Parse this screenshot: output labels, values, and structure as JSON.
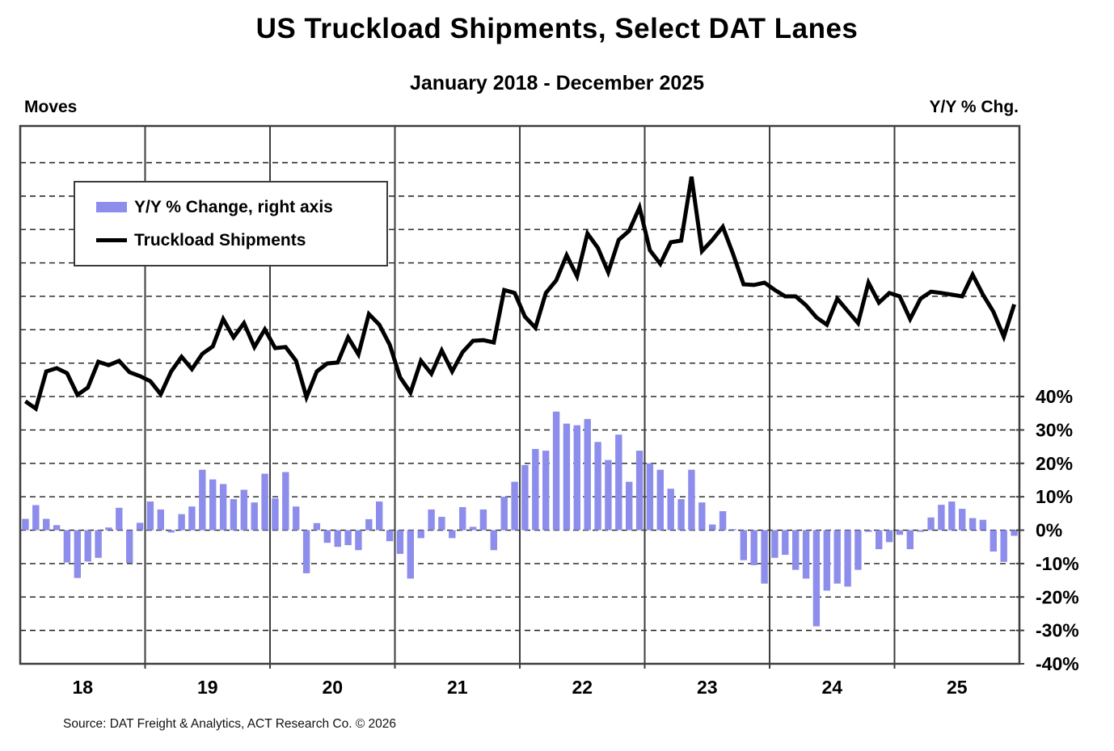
{
  "header": {
    "title": "US Truckload Shipments, Select DAT Lanes",
    "subtitle": "January 2018 - December 2025"
  },
  "axes": {
    "left_title": "Moves",
    "right_title": "Y/Y % Chg."
  },
  "legend": {
    "items": [
      {
        "label": "Y/Y % Change, right axis",
        "swatch": "bar",
        "color": "#8d8dec"
      },
      {
        "label": "Truckload Shipments",
        "swatch": "line",
        "color": "#000000"
      }
    ]
  },
  "footer": {
    "source": "Source: DAT Freight & Analytics, ACT Research Co. © 2026"
  },
  "chart_data": {
    "type": "combo",
    "subtypes": [
      "bar",
      "line"
    ],
    "title": "US Truckload Shipments, Select DAT Lanes",
    "subtitle": "January 2018 - December 2025",
    "x_unit": "month",
    "years": [
      "2018",
      "2019",
      "2020",
      "2021",
      "2022",
      "2023",
      "2024",
      "2025"
    ],
    "x_axis": {
      "tick_labels": [
        "18",
        "19",
        "20",
        "21",
        "22",
        "23",
        "24",
        "25"
      ],
      "grid": "solid vertical lines at year boundaries"
    },
    "left_axis": {
      "label": "Moves",
      "numeric_ticks_shown": false
    },
    "right_axis": {
      "label": "Y/Y % Chg.",
      "ticks": [
        {
          "label": "40%",
          "value": 40
        },
        {
          "label": "30%",
          "value": 30
        },
        {
          "label": "20%",
          "value": 20
        },
        {
          "label": "10%",
          "value": 10
        },
        {
          "label": "0%",
          "value": 0
        },
        {
          "label": "-10%",
          "value": -10
        },
        {
          "label": "-20%",
          "value": -20
        },
        {
          "label": "-30%",
          "value": -30
        },
        {
          "label": "-40%",
          "value": -40
        }
      ],
      "rendered_range": [
        -40,
        121
      ],
      "gridline_step": 10,
      "grid": "dashed horizontal"
    },
    "bar_series": {
      "name": "Y/Y % Change, right axis",
      "axis": "right",
      "unit": "%",
      "color": "#8d8dec",
      "values_by_year": {
        "2018": [
          3.4,
          7.5,
          3.4,
          1.5,
          -9.7,
          -14.3,
          -9.4,
          -8.3,
          0.8,
          6.7,
          -9.8,
          2.2
        ],
        "2019": [
          8.6,
          6.2,
          -0.7,
          4.8,
          7.1,
          18.1,
          15.2,
          13.8,
          9.3,
          12.1,
          8.3,
          16.9
        ],
        "2020": [
          9.5,
          17.4,
          7.1,
          -12.9,
          2.1,
          -3.8,
          -5.0,
          -4.5,
          -6.0,
          3.3,
          8.6,
          -3.3
        ],
        "2021": [
          -7.1,
          -14.5,
          -2.4,
          6.2,
          4.0,
          -2.4,
          6.9,
          1.0,
          6.2,
          -6.0,
          10.0,
          14.5
        ],
        "2022": [
          19.5,
          24.3,
          23.8,
          35.5,
          31.9,
          31.4,
          33.3,
          26.4,
          21.0,
          28.6,
          14.5,
          23.8
        ],
        "2023": [
          20.0,
          18.1,
          12.4,
          9.3,
          18.1,
          8.3,
          1.7,
          5.7,
          0.3,
          -9.0,
          -10.5,
          -16.0
        ],
        "2024": [
          -8.3,
          -7.4,
          -11.9,
          -14.5,
          -28.8,
          -18.1,
          -16.0,
          -16.9,
          -11.9,
          -0.5,
          -5.7,
          -3.6
        ],
        "2025": [
          -1.4,
          -5.7,
          -0.5,
          3.8,
          7.6,
          8.6,
          6.4,
          3.6,
          3.1,
          -6.4,
          -9.5,
          -1.7
        ]
      }
    },
    "line_series": {
      "name": "Truckload Shipments",
      "axis": "left",
      "unit": "Moves (left axis shows no numeric scale)",
      "color": "#000000",
      "note": "Values estimated in right-axis-equivalent percent units purely to reproduce the plotted curve position.",
      "values_by_year": {
        "2018": [
          38.6,
          36.4,
          47.5,
          48.5,
          47.0,
          40.5,
          42.7,
          50.4,
          49.4,
          50.7,
          47.3,
          46.1
        ],
        "2019": [
          44.6,
          40.7,
          47.5,
          51.9,
          48.2,
          52.8,
          55.0,
          63.2,
          57.7,
          62.0,
          54.8,
          60.1
        ],
        "2020": [
          54.5,
          54.8,
          50.7,
          39.8,
          47.5,
          49.9,
          50.2,
          57.7,
          52.6,
          64.7,
          61.5,
          55.5
        ],
        "2021": [
          45.8,
          41.2,
          50.7,
          46.8,
          53.8,
          47.5,
          53.3,
          56.7,
          56.9,
          56.2,
          71.9,
          71.0
        ],
        "2022": [
          63.9,
          60.6,
          71.0,
          74.8,
          82.3,
          76.0,
          88.8,
          84.5,
          77.2,
          86.9,
          89.6,
          96.6
        ],
        "2023": [
          83.8,
          79.7,
          86.2,
          86.7,
          105.8,
          83.5,
          86.9,
          90.8,
          82.6,
          73.6,
          73.4,
          74.1
        ],
        "2024": [
          71.9,
          70.0,
          70.0,
          67.3,
          63.7,
          61.5,
          69.3,
          65.6,
          62.0,
          74.1,
          68.1,
          71.0
        ],
        "2025": [
          70.0,
          63.2,
          69.3,
          71.4,
          71.0,
          70.5,
          70.0,
          76.5,
          70.5,
          65.4,
          57.9,
          67.6
        ]
      }
    },
    "legend_position": "upper-left inside plot",
    "source": "Source: DAT Freight & Analytics, ACT Research Co. © 2026"
  }
}
